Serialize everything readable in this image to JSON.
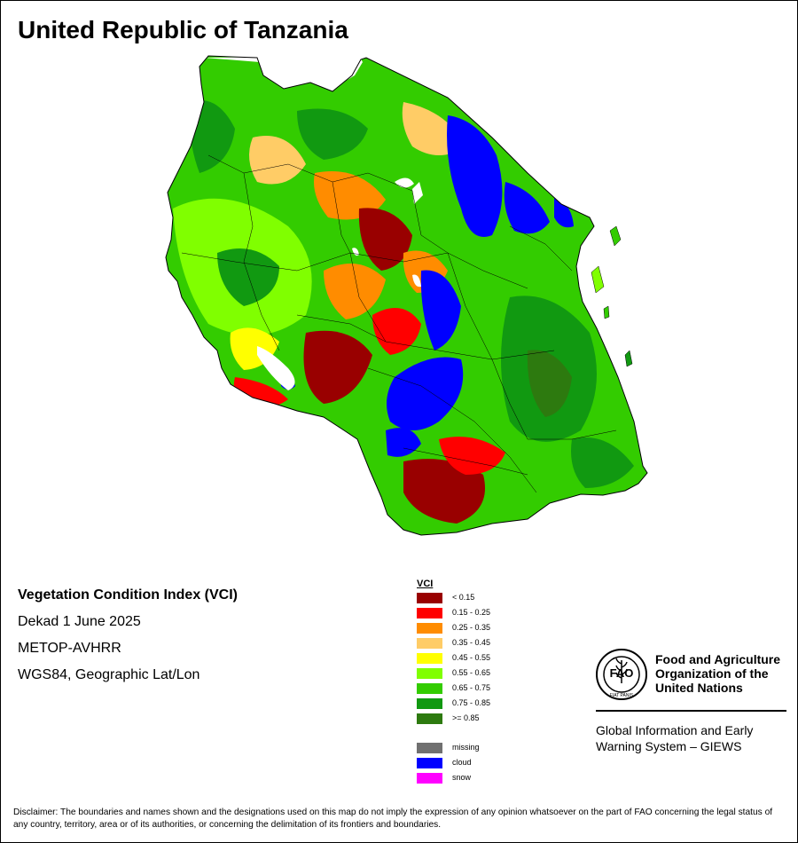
{
  "title": "United Republic of Tanzania",
  "info": {
    "product": "Vegetation Condition Index (VCI)",
    "period": "Dekad 1 June 2025",
    "sensor": "METOP-AVHRR",
    "projection": "WGS84, Geographic Lat/Lon"
  },
  "legend": {
    "title": "VCI",
    "classes": [
      {
        "label": "< 0.15",
        "color": "#990000"
      },
      {
        "label": "0.15 - 0.25",
        "color": "#ff0000"
      },
      {
        "label": "0.25 - 0.35",
        "color": "#ff8c00"
      },
      {
        "label": "0.35 - 0.45",
        "color": "#ffcc66"
      },
      {
        "label": "0.45 - 0.55",
        "color": "#ffff00"
      },
      {
        "label": "0.55 - 0.65",
        "color": "#80ff00"
      },
      {
        "label": "0.65 - 0.75",
        "color": "#33cc00"
      },
      {
        "label": "0.75 - 0.85",
        "color": "#119911"
      },
      {
        "label": ">= 0.85",
        "color": "#2d7a0f"
      }
    ],
    "extra": [
      {
        "label": "missing",
        "color": "#707070"
      },
      {
        "label": "cloud",
        "color": "#0000ff"
      },
      {
        "label": "snow",
        "color": "#ff00ff"
      }
    ]
  },
  "logo": {
    "acronym": "FAO",
    "ring_text": "FIAT PANIS",
    "icon": "fao-logo-icon"
  },
  "org": {
    "line1": "Food and Agriculture",
    "line2": "Organization of the",
    "line3": "United Nations"
  },
  "giews": {
    "line1": "Global Information and Early",
    "line2": "Warning System – GIEWS"
  },
  "disclaimer": "Disclaimer: The boundaries and names shown and the designations used on this map do not imply the expression of any opinion whatsoever on the part of FAO concerning the legal status of any country, territory, area or of its authorities, or concerning the delimitation of its frontiers and boundaries."
}
